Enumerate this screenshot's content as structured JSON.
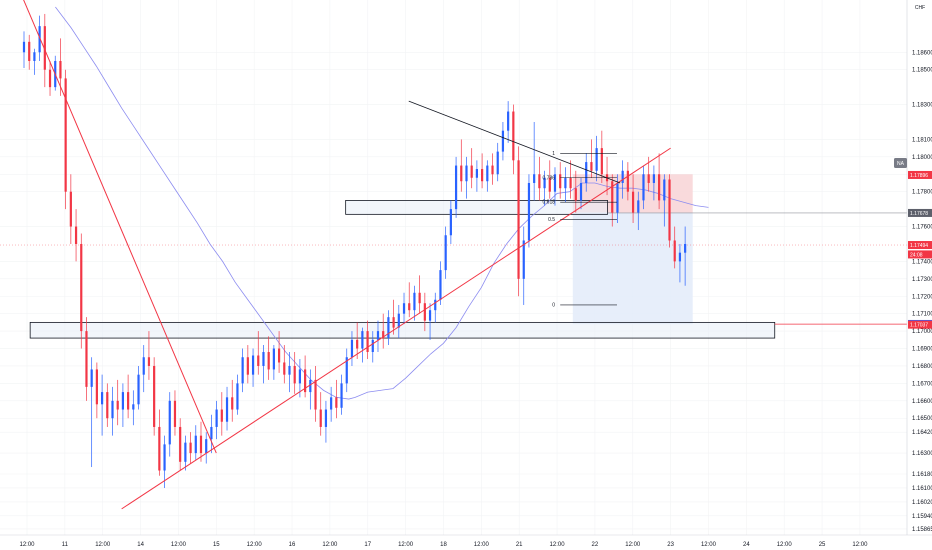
{
  "app": {
    "currency": "CHF",
    "price_scale_mode": "NA"
  },
  "colors": {
    "bull": "#2962ff",
    "bear": "#f23645",
    "trend": "#f23645",
    "ma": "#8c8cf0",
    "zone_stroke": "#131722",
    "zone_fill": "#e8eef8",
    "stop_fill": "#f8d3d6",
    "target_fill": "#e4ecf9",
    "triangle": "#131722",
    "fib": "#131722"
  },
  "chart_data": {
    "type": "candlestick",
    "y_range": [
      1.1583,
      1.189
    ],
    "y_ticks": [
      "1.18600",
      "1.18500",
      "1.18300",
      "1.18100",
      "1.18000",
      "1.17900",
      "1.17800",
      "1.17600",
      "1.17400",
      "1.17300",
      "1.17200",
      "1.17100",
      "1.17000",
      "1.16900",
      "1.16800",
      "1.16700",
      "1.16600",
      "1.16500",
      "1.16420",
      "1.16300",
      "1.16180",
      "1.16100",
      "1.16020",
      "1.15940",
      "1.15865"
    ],
    "y_tick_values": [
      1.186,
      1.185,
      1.183,
      1.181,
      1.18,
      1.179,
      1.178,
      1.176,
      1.174,
      1.173,
      1.172,
      1.171,
      1.17,
      1.169,
      1.168,
      1.167,
      1.166,
      1.165,
      1.1642,
      1.163,
      1.1618,
      1.161,
      1.1602,
      1.1594,
      1.15865
    ],
    "x_labels": [
      "12:00",
      "11",
      "12:00",
      "14",
      "12:00",
      "15",
      "12:00",
      "16",
      "12:00",
      "17",
      "12:00",
      "18",
      "12:00",
      "21",
      "12:00",
      "22",
      "12:00",
      "23",
      "12:00",
      "24",
      "12:00",
      "25",
      "12:00"
    ],
    "x_label_bars": [
      0,
      12,
      24,
      36,
      48,
      60,
      72,
      84,
      96,
      108,
      120,
      132,
      144,
      156,
      168,
      180,
      192,
      204,
      216,
      228,
      240,
      252,
      264
    ],
    "price_labels": [
      {
        "text": "1.17896",
        "value": 1.17896,
        "color": "#f23645"
      },
      {
        "text": "1.17678",
        "value": 1.17678,
        "color": "#5d606b"
      },
      {
        "text": "1.17494",
        "value": 1.17494,
        "color": "#f23645"
      },
      {
        "text": "24:08",
        "value": 1.1744,
        "color": "#f23645"
      },
      {
        "text": "1.17041",
        "value": 1.17041,
        "color": "#2962ff"
      },
      {
        "text": "1.17037",
        "value": 1.17037,
        "color": "#f23645"
      }
    ],
    "fib_levels": [
      {
        "label": "1",
        "value": 1.1802
      },
      {
        "label": "0.786",
        "value": 1.1788
      },
      {
        "label": "0.618",
        "value": 1.1774
      },
      {
        "label": "0.5",
        "value": 1.1764
      },
      {
        "label": "0",
        "value": 1.1715
      }
    ],
    "zones": [
      {
        "from": 1.1775,
        "to": 1.1767,
        "x_from_bar": 101,
        "x_to_bar": 184
      },
      {
        "from": 1.1705,
        "to": 1.1696,
        "x_from_bar": 1,
        "x_to_bar": 237
      }
    ],
    "position": {
      "entry": 1.1768,
      "stop": 1.179,
      "target": 1.1704,
      "from_bar": 173,
      "to_bar": 211
    },
    "trendlines": [
      {
        "from": [
          -2,
          1.1894
        ],
        "to": [
          60,
          1.163
        ]
      },
      {
        "from": [
          30,
          1.1598
        ],
        "to": [
          204,
          1.1805
        ]
      },
      {
        "from": [
          121,
          1.1832
        ],
        "to": [
          188,
          1.1785
        ]
      }
    ],
    "ma": [
      [
        9,
        1.1886
      ],
      [
        14,
        1.1874
      ],
      [
        18,
        1.1863
      ],
      [
        22,
        1.1852
      ],
      [
        26,
        1.184
      ],
      [
        30,
        1.1828
      ],
      [
        34,
        1.1817
      ],
      [
        38,
        1.1806
      ],
      [
        42,
        1.1795
      ],
      [
        46,
        1.1784
      ],
      [
        50,
        1.1773
      ],
      [
        54,
        1.1762
      ],
      [
        58,
        1.175
      ],
      [
        62,
        1.174
      ],
      [
        66,
        1.1728
      ],
      [
        70,
        1.1718
      ],
      [
        74,
        1.1708
      ],
      [
        78,
        1.1698
      ],
      [
        82,
        1.1688
      ],
      [
        86,
        1.168
      ],
      [
        90,
        1.1672
      ],
      [
        94,
        1.1666
      ],
      [
        98,
        1.1662
      ],
      [
        102,
        1.1661
      ],
      [
        104,
        1.1662
      ],
      [
        108,
        1.1665
      ],
      [
        112,
        1.1666
      ],
      [
        116,
        1.1667
      ],
      [
        120,
        1.1673
      ],
      [
        124,
        1.168
      ],
      [
        128,
        1.1687
      ],
      [
        132,
        1.1693
      ],
      [
        136,
        1.1702
      ],
      [
        140,
        1.1714
      ],
      [
        144,
        1.1725
      ],
      [
        148,
        1.1739
      ],
      [
        152,
        1.175
      ],
      [
        156,
        1.1759
      ],
      [
        160,
        1.1766
      ],
      [
        164,
        1.1772
      ],
      [
        168,
        1.1779
      ],
      [
        172,
        1.178
      ],
      [
        176,
        1.1785
      ],
      [
        180,
        1.1785
      ],
      [
        184,
        1.1783
      ],
      [
        188,
        1.1782
      ],
      [
        192,
        1.1782
      ],
      [
        196,
        1.1781
      ],
      [
        200,
        1.1779
      ],
      [
        204,
        1.1776
      ],
      [
        208,
        1.1774
      ],
      [
        212,
        1.1772
      ],
      [
        216,
        1.1771
      ]
    ],
    "candles": [
      [
        1.186,
        1.1872,
        1.1851,
        1.1866
      ],
      [
        1.1866,
        1.187,
        1.185,
        1.1855
      ],
      [
        1.1855,
        1.1862,
        1.1847,
        1.186
      ],
      [
        1.186,
        1.1881,
        1.1855,
        1.1875
      ],
      [
        1.1875,
        1.1882,
        1.184,
        1.185
      ],
      [
        1.185,
        1.1855,
        1.1835,
        1.184
      ],
      [
        1.184,
        1.1858,
        1.1838,
        1.1855
      ],
      [
        1.1855,
        1.1868,
        1.1835,
        1.1845
      ],
      [
        1.1845,
        1.185,
        1.177,
        1.178
      ],
      [
        1.178,
        1.179,
        1.175,
        1.176
      ],
      [
        1.176,
        1.177,
        1.174,
        1.175
      ],
      [
        1.175,
        1.1756,
        1.169,
        1.17
      ],
      [
        1.17,
        1.1708,
        1.166,
        1.1668
      ],
      [
        1.1668,
        1.1685,
        1.1622,
        1.1678
      ],
      [
        1.1678,
        1.1682,
        1.165,
        1.1658
      ],
      [
        1.1658,
        1.1675,
        1.164,
        1.1665
      ],
      [
        1.1665,
        1.167,
        1.1645,
        1.165
      ],
      [
        1.165,
        1.1668,
        1.164,
        1.166
      ],
      [
        1.166,
        1.1672,
        1.1646,
        1.1655
      ],
      [
        1.1655,
        1.167,
        1.1645,
        1.1665
      ],
      [
        1.1665,
        1.1675,
        1.165,
        1.1655
      ],
      [
        1.1655,
        1.1666,
        1.1646,
        1.1658
      ],
      [
        1.1658,
        1.168,
        1.1655,
        1.1675
      ],
      [
        1.1675,
        1.1692,
        1.1665,
        1.1685
      ],
      [
        1.1685,
        1.17,
        1.1672,
        1.168
      ],
      [
        1.168,
        1.1685,
        1.164,
        1.1645
      ],
      [
        1.1645,
        1.1655,
        1.1617,
        1.162
      ],
      [
        1.162,
        1.164,
        1.161,
        1.1635
      ],
      [
        1.1635,
        1.1665,
        1.1628,
        1.166
      ],
      [
        1.166,
        1.1666,
        1.164,
        1.1645
      ],
      [
        1.1645,
        1.165,
        1.162,
        1.1625
      ],
      [
        1.1625,
        1.164,
        1.162,
        1.1636
      ],
      [
        1.1636,
        1.1642,
        1.1624,
        1.163
      ],
      [
        1.163,
        1.1646,
        1.1626,
        1.164
      ],
      [
        1.164,
        1.1648,
        1.1625,
        1.163
      ],
      [
        1.163,
        1.1642,
        1.1624,
        1.1638
      ],
      [
        1.1638,
        1.1652,
        1.163,
        1.1645
      ],
      [
        1.1645,
        1.166,
        1.1638,
        1.1655
      ],
      [
        1.1655,
        1.1665,
        1.164,
        1.1648
      ],
      [
        1.1648,
        1.1668,
        1.1643,
        1.1662
      ],
      [
        1.1662,
        1.1672,
        1.1648,
        1.1655
      ],
      [
        1.1655,
        1.1675,
        1.1652,
        1.167
      ],
      [
        1.167,
        1.169,
        1.1665,
        1.1685
      ],
      [
        1.1685,
        1.1692,
        1.167,
        1.1675
      ],
      [
        1.1675,
        1.169,
        1.1668,
        1.1686
      ],
      [
        1.1686,
        1.17,
        1.1675,
        1.168
      ],
      [
        1.168,
        1.1692,
        1.167,
        1.1688
      ],
      [
        1.1688,
        1.1697,
        1.1672,
        1.1678
      ],
      [
        1.1678,
        1.1692,
        1.1672,
        1.169
      ],
      [
        1.169,
        1.17,
        1.1676,
        1.1682
      ],
      [
        1.1682,
        1.1692,
        1.167,
        1.1675
      ],
      [
        1.1675,
        1.1688,
        1.1665,
        1.168
      ],
      [
        1.168,
        1.1688,
        1.1664,
        1.167
      ],
      [
        1.167,
        1.1684,
        1.1662,
        1.1678
      ],
      [
        1.1678,
        1.1686,
        1.1662,
        1.1665
      ],
      [
        1.1665,
        1.1678,
        1.1655,
        1.1672
      ],
      [
        1.1672,
        1.168,
        1.1648,
        1.1655
      ],
      [
        1.1655,
        1.1665,
        1.164,
        1.1645
      ],
      [
        1.1645,
        1.166,
        1.1636,
        1.1655
      ],
      [
        1.1655,
        1.1668,
        1.1648,
        1.1662
      ],
      [
        1.1662,
        1.1672,
        1.165,
        1.1656
      ],
      [
        1.1656,
        1.1675,
        1.1652,
        1.167
      ],
      [
        1.167,
        1.169,
        1.1665,
        1.1685
      ],
      [
        1.1685,
        1.17,
        1.168,
        1.1695
      ],
      [
        1.1695,
        1.1705,
        1.1684,
        1.169
      ],
      [
        1.169,
        1.1702,
        1.1682,
        1.17
      ],
      [
        1.17,
        1.1706,
        1.1684,
        1.1688
      ],
      [
        1.1688,
        1.17,
        1.1682,
        1.1695
      ],
      [
        1.1695,
        1.1706,
        1.1688,
        1.17
      ],
      [
        1.17,
        1.171,
        1.169,
        1.1696
      ],
      [
        1.1696,
        1.1712,
        1.1692,
        1.1708
      ],
      [
        1.1708,
        1.1718,
        1.1698,
        1.1702
      ],
      [
        1.1702,
        1.1715,
        1.1696,
        1.171
      ],
      [
        1.171,
        1.1722,
        1.1704,
        1.1716
      ],
      [
        1.1716,
        1.1728,
        1.1708,
        1.1712
      ],
      [
        1.1712,
        1.1726,
        1.1706,
        1.1722
      ],
      [
        1.1722,
        1.1732,
        1.171,
        1.1716
      ],
      [
        1.1716,
        1.1722,
        1.17,
        1.1706
      ],
      [
        1.1706,
        1.1716,
        1.1695,
        1.1712
      ],
      [
        1.1712,
        1.1722,
        1.1705,
        1.1718
      ],
      [
        1.1718,
        1.174,
        1.1715,
        1.1735
      ],
      [
        1.1735,
        1.176,
        1.173,
        1.1755
      ],
      [
        1.1755,
        1.1775,
        1.175,
        1.177
      ],
      [
        1.177,
        1.18,
        1.1765,
        1.1795
      ],
      [
        1.1795,
        1.181,
        1.178,
        1.1786
      ],
      [
        1.1786,
        1.18,
        1.1776,
        1.1795
      ],
      [
        1.1795,
        1.1805,
        1.1782,
        1.1788
      ],
      [
        1.1788,
        1.1798,
        1.178,
        1.1793
      ],
      [
        1.1793,
        1.1802,
        1.1782,
        1.1786
      ],
      [
        1.1786,
        1.1798,
        1.178,
        1.1795
      ],
      [
        1.1795,
        1.1802,
        1.1784,
        1.179
      ],
      [
        1.179,
        1.1808,
        1.1786,
        1.1803
      ],
      [
        1.1803,
        1.182,
        1.1798,
        1.1815
      ],
      [
        1.1815,
        1.1832,
        1.1808,
        1.1826
      ],
      [
        1.1826,
        1.183,
        1.179,
        1.1798
      ],
      [
        1.1798,
        1.1806,
        1.172,
        1.173
      ],
      [
        1.173,
        1.176,
        1.1715,
        1.1752
      ],
      [
        1.1752,
        1.179,
        1.1748,
        1.1785
      ],
      [
        1.1785,
        1.182,
        1.1775,
        1.179
      ],
      [
        1.179,
        1.18,
        1.1775,
        1.1782
      ],
      [
        1.1782,
        1.1792,
        1.1772,
        1.1788
      ],
      [
        1.1788,
        1.1798,
        1.1776,
        1.178
      ],
      [
        1.178,
        1.1794,
        1.1772,
        1.179
      ],
      [
        1.179,
        1.1797,
        1.1776,
        1.1782
      ],
      [
        1.1782,
        1.1794,
        1.1774,
        1.1788
      ],
      [
        1.1788,
        1.1798,
        1.1776,
        1.1782
      ],
      [
        1.1782,
        1.1792,
        1.1768,
        1.1775
      ],
      [
        1.1775,
        1.1788,
        1.177,
        1.1785
      ],
      [
        1.1785,
        1.1802,
        1.178,
        1.1797
      ],
      [
        1.1797,
        1.181,
        1.1788,
        1.1792
      ],
      [
        1.1792,
        1.1812,
        1.1786,
        1.1805
      ],
      [
        1.1805,
        1.1815,
        1.1785,
        1.179
      ],
      [
        1.179,
        1.18,
        1.1778,
        1.1786
      ],
      [
        1.1786,
        1.179,
        1.176,
        1.1768
      ],
      [
        1.1768,
        1.179,
        1.1762,
        1.1785
      ],
      [
        1.1785,
        1.1798,
        1.1776,
        1.1792
      ],
      [
        1.1792,
        1.1797,
        1.1775,
        1.178
      ],
      [
        1.178,
        1.179,
        1.1762,
        1.1768
      ],
      [
        1.1768,
        1.178,
        1.1758,
        1.1775
      ],
      [
        1.1775,
        1.1795,
        1.177,
        1.179
      ],
      [
        1.179,
        1.18,
        1.178,
        1.1785
      ],
      [
        1.1785,
        1.1795,
        1.1775,
        1.179
      ],
      [
        1.179,
        1.1802,
        1.177,
        1.1775
      ],
      [
        1.1775,
        1.179,
        1.176,
        1.1787
      ],
      [
        1.1787,
        1.179,
        1.1748,
        1.1752
      ],
      [
        1.1752,
        1.176,
        1.1736,
        1.174
      ],
      [
        1.174,
        1.175,
        1.1728,
        1.1745
      ],
      [
        1.1745,
        1.176,
        1.1726,
        1.175
      ]
    ],
    "candles_start_bar": 0,
    "bars_per_candle": 1.65
  }
}
